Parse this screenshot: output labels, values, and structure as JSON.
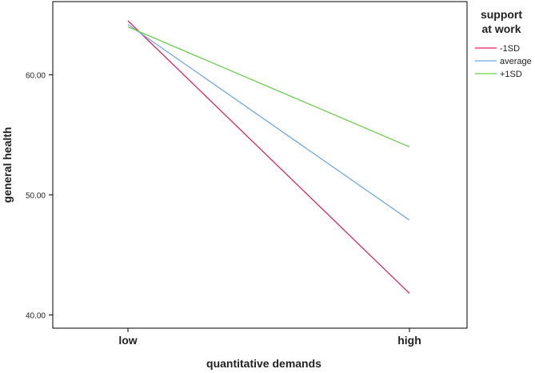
{
  "chart_data": {
    "type": "line",
    "xlabel": "quantitative demands",
    "ylabel": "general health",
    "categories": [
      "low",
      "high"
    ],
    "ylim": [
      38.9,
      66.1
    ],
    "y_ticks": [
      40,
      50,
      60
    ],
    "y_tick_labels": [
      "40.00",
      "50.00",
      "60.00"
    ],
    "grid": false,
    "legend_position": "right",
    "legend_title": [
      "support",
      "at work"
    ],
    "series": [
      {
        "name": "-1SD",
        "values": [
          64.5,
          41.8
        ],
        "color": "#e0245e"
      },
      {
        "name": "average",
        "values": [
          64.2,
          47.9
        ],
        "color": "#6fa8e8"
      },
      {
        "name": "+1SD",
        "values": [
          64.0,
          54.0
        ],
        "color": "#6ccf4e"
      }
    ]
  }
}
